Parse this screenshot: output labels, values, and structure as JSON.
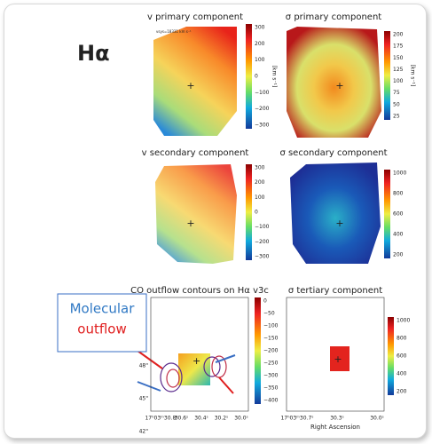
{
  "label": "Hα",
  "annotation": {
    "line1": "Molecular",
    "line2": "outflow"
  },
  "panels": [
    {
      "title": "v primary component",
      "note": "vsys=18331 km s⁻¹",
      "unit": "[km s⁻¹]",
      "colorbar": [
        "300",
        "200",
        "100",
        "0",
        "−100",
        "−200",
        "−300"
      ]
    },
    {
      "title": "σ primary component",
      "unit": "[km s⁻¹]",
      "colorbar": [
        "200",
        "175",
        "150",
        "125",
        "100",
        "75",
        "50",
        "25"
      ]
    },
    {
      "title": "v secondary component",
      "colorbar": [
        "300",
        "200",
        "100",
        "0",
        "−100",
        "−200",
        "−300"
      ]
    },
    {
      "title": "σ secondary component",
      "colorbar": [
        "1000",
        "800",
        "600",
        "400",
        "200"
      ]
    },
    {
      "title": "CO outflow contours on Hα v3c",
      "colorbar": [
        "0",
        "−50",
        "−100",
        "−150",
        "−200",
        "−250",
        "−300",
        "−350",
        "−400"
      ],
      "yticks": [
        "48\"",
        "45\"",
        "42\""
      ],
      "xticks": [
        "17ʰ03ᵐ30.8ˢ",
        "30.6ˢ",
        "30.4ˢ",
        "30.2ˢ",
        "30.0ˢ"
      ]
    },
    {
      "title": "σ tertiary component",
      "colorbar": [
        "1000",
        "800",
        "600",
        "400",
        "200"
      ],
      "xticks": [
        "17ʰ03ᵐ30.7ˢ",
        "30.3ˢ",
        "30.0ˢ"
      ],
      "xlabel": "Right Ascension"
    }
  ]
}
